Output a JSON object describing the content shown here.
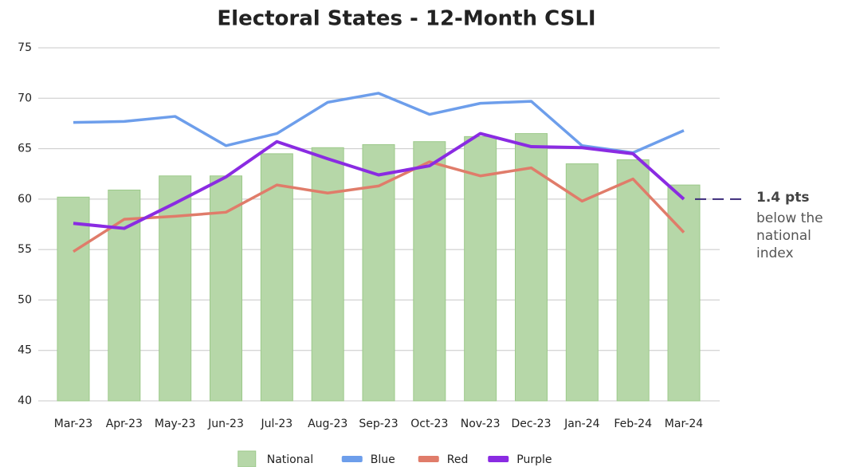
{
  "chart_data": {
    "type": "combo",
    "title": "Electoral States - 12-Month CSLI",
    "categories": [
      "Mar-23",
      "Apr-23",
      "May-23",
      "Jun-23",
      "Jul-23",
      "Aug-23",
      "Sep-23",
      "Oct-23",
      "Nov-23",
      "Dec-23",
      "Jan-24",
      "Feb-24",
      "Mar-24"
    ],
    "series": [
      {
        "name": "National",
        "type": "bar",
        "color": "#b6d7a8",
        "values": [
          60.2,
          60.9,
          62.3,
          62.3,
          64.5,
          65.1,
          65.4,
          65.7,
          66.2,
          66.5,
          63.5,
          63.9,
          61.4
        ]
      },
      {
        "name": "Blue",
        "type": "line",
        "color": "#6d9eeb",
        "values": [
          67.6,
          67.7,
          68.2,
          65.3,
          66.5,
          69.6,
          70.5,
          68.4,
          69.5,
          69.7,
          65.3,
          64.6,
          66.8
        ]
      },
      {
        "name": "Red",
        "type": "line",
        "color": "#e07c6a",
        "values": [
          54.8,
          58.0,
          58.3,
          58.7,
          61.4,
          60.6,
          61.3,
          63.7,
          62.3,
          63.1,
          59.8,
          62.0,
          56.7
        ]
      },
      {
        "name": "Purple",
        "type": "line",
        "color": "#8a2be2",
        "values": [
          57.6,
          57.1,
          59.6,
          62.2,
          65.7,
          64.0,
          62.4,
          63.3,
          66.5,
          65.2,
          65.1,
          64.5,
          60.0
        ]
      }
    ],
    "ylim": [
      40,
      75
    ],
    "yticks": [
      40,
      45,
      50,
      55,
      60,
      65,
      70,
      75
    ],
    "grid": true,
    "legend": "bottom",
    "annotation": {
      "title": "1.4 pts",
      "lines": [
        "below the",
        "national",
        "index"
      ]
    }
  }
}
